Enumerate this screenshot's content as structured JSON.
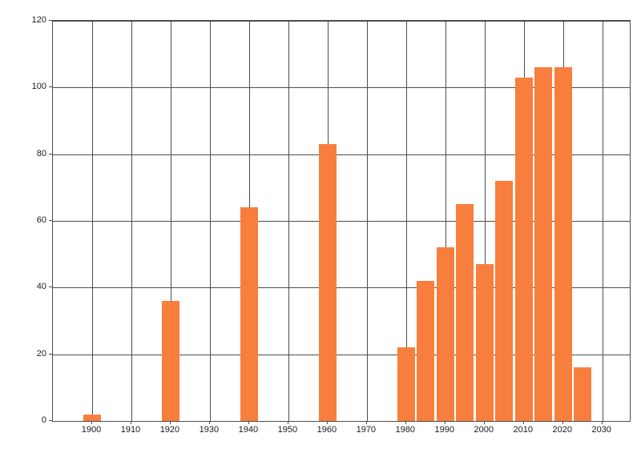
{
  "chart_data": {
    "type": "bar",
    "title": "",
    "xlabel": "",
    "ylabel": "",
    "x": [
      1900,
      1920,
      1940,
      1960,
      1980,
      1985,
      1990,
      1995,
      2000,
      2005,
      2010,
      2015,
      2020,
      2025
    ],
    "values": [
      2,
      36,
      64,
      83,
      22,
      42,
      52,
      65,
      47,
      72,
      103,
      106,
      106,
      16
    ],
    "xlim": [
      1890,
      2037
    ],
    "ylim": [
      0,
      120
    ],
    "x_ticks": [
      1900,
      1910,
      1920,
      1930,
      1940,
      1950,
      1960,
      1970,
      1980,
      1990,
      2000,
      2010,
      2020,
      2030
    ],
    "y_ticks": [
      0,
      20,
      40,
      60,
      80,
      100,
      120
    ],
    "grid": true,
    "legend": false,
    "bar_width_years": 4.5,
    "bar_color": "#f87e3d",
    "grid_color": "#4d4d4d",
    "background_color": "#ffffff"
  }
}
